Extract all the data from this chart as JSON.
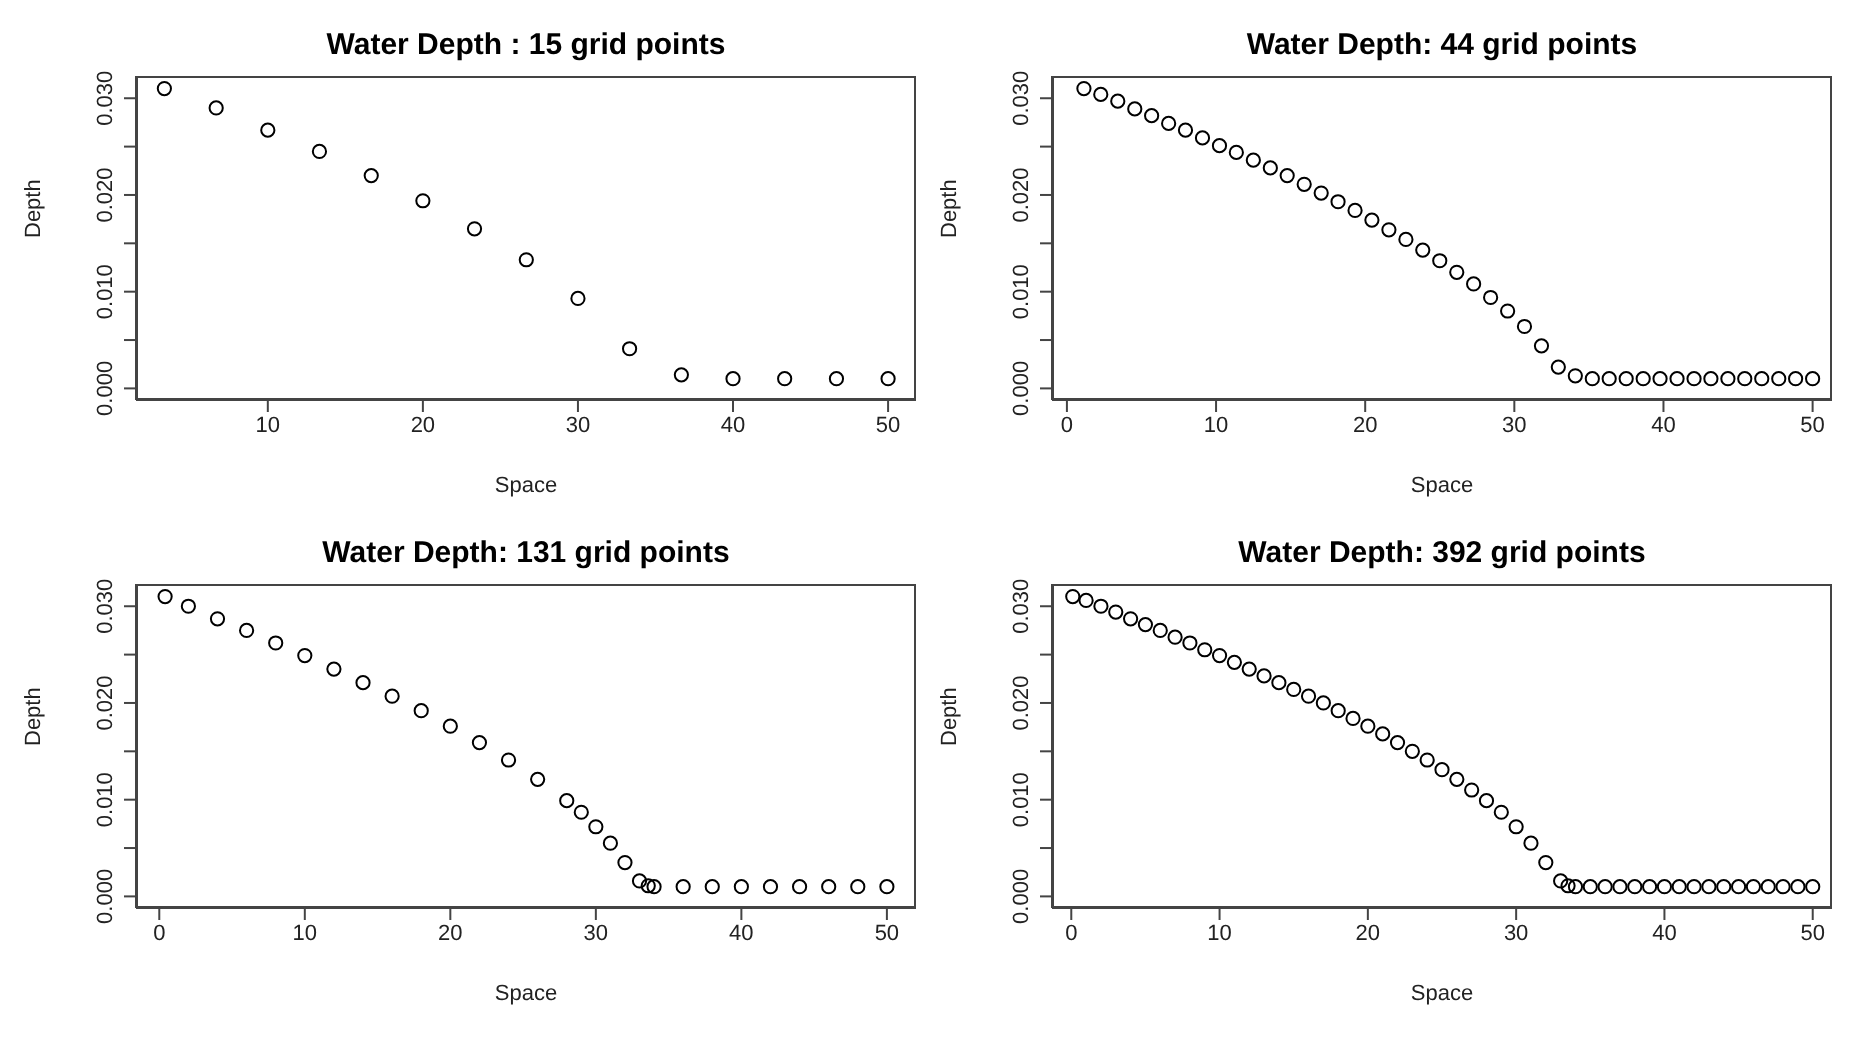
{
  "chart_data": [
    {
      "type": "scatter",
      "title": "Water Depth : 15 grid points",
      "xlabel": "Space",
      "ylabel": "Depth",
      "marker": "circle",
      "grid": false,
      "xlim": [
        1.5,
        51.8
      ],
      "xticks": [
        10,
        20,
        30,
        40,
        50
      ],
      "ylim": [
        -0.0012,
        0.0323
      ],
      "yticks": [
        {
          "value": 0,
          "label": "0.000"
        },
        {
          "value": 0.005,
          "label": null
        },
        {
          "value": 0.01,
          "label": "0.010"
        },
        {
          "value": 0.015,
          "label": null
        },
        {
          "value": 0.02,
          "label": "0.020"
        },
        {
          "value": 0.025,
          "label": null
        },
        {
          "value": 0.03,
          "label": "0.030"
        }
      ],
      "series": [
        {
          "color": "#000000",
          "x": [
            3.33,
            6.67,
            10,
            13.33,
            16.67,
            20,
            23.33,
            26.67,
            30,
            33.33,
            36.67,
            40,
            43.33,
            46.67,
            50
          ],
          "values": [
            0.031,
            0.029,
            0.0267,
            0.0245,
            0.022,
            0.0194,
            0.0165,
            0.0133,
            0.0093,
            0.0041,
            0.0014,
            0.001,
            0.001,
            0.001,
            0.001
          ]
        }
      ]
    },
    {
      "type": "scatter",
      "title": "Water Depth: 44 grid points",
      "xlabel": "Space",
      "ylabel": "Depth",
      "marker": "circle",
      "grid": false,
      "xlim": [
        -1,
        51.3
      ],
      "xticks": [
        0,
        10,
        20,
        30,
        40,
        50
      ],
      "ylim": [
        -0.0012,
        0.0323
      ],
      "yticks": [
        {
          "value": 0,
          "label": "0.000"
        },
        {
          "value": 0.005,
          "label": null
        },
        {
          "value": 0.01,
          "label": "0.010"
        },
        {
          "value": 0.015,
          "label": null
        },
        {
          "value": 0.02,
          "label": "0.020"
        },
        {
          "value": 0.025,
          "label": null
        },
        {
          "value": 0.03,
          "label": "0.030"
        }
      ],
      "series": [
        {
          "color": "#000000",
          "x": [
            1.14,
            2.27,
            3.41,
            4.55,
            5.68,
            6.82,
            7.95,
            9.09,
            10.23,
            11.36,
            12.5,
            13.64,
            14.77,
            15.91,
            17.05,
            18.18,
            19.32,
            20.45,
            21.59,
            22.73,
            23.86,
            25,
            26.14,
            27.27,
            28.41,
            29.55,
            30.68,
            31.82,
            32.95,
            34.09,
            35.23,
            36.36,
            37.5,
            38.64,
            39.77,
            40.91,
            42.05,
            43.18,
            44.32,
            45.45,
            46.59,
            47.73,
            48.86,
            50
          ],
          "values": [
            0.031,
            0.0304,
            0.0297,
            0.0289,
            0.0282,
            0.0274,
            0.0267,
            0.0259,
            0.0251,
            0.0244,
            0.0236,
            0.0228,
            0.022,
            0.0211,
            0.0202,
            0.0193,
            0.0184,
            0.0174,
            0.0164,
            0.0154,
            0.0143,
            0.0132,
            0.012,
            0.0108,
            0.0094,
            0.008,
            0.0064,
            0.0044,
            0.0022,
            0.0013,
            0.001,
            0.001,
            0.001,
            0.001,
            0.001,
            0.001,
            0.001,
            0.001,
            0.001,
            0.001,
            0.001,
            0.001,
            0.001,
            0.001
          ]
        }
      ]
    },
    {
      "type": "scatter",
      "title": "Water Depth: 131 grid points",
      "xlabel": "Space",
      "ylabel": "Depth",
      "marker": "circle",
      "grid": false,
      "xlim": [
        -1.6,
        52
      ],
      "xticks": [
        0,
        10,
        20,
        30,
        40,
        50
      ],
      "ylim": [
        -0.0012,
        0.0323
      ],
      "yticks": [
        {
          "value": 0,
          "label": "0.000"
        },
        {
          "value": 0.005,
          "label": null
        },
        {
          "value": 0.01,
          "label": "0.010"
        },
        {
          "value": 0.015,
          "label": null
        },
        {
          "value": 0.02,
          "label": "0.020"
        },
        {
          "value": 0.025,
          "label": null
        },
        {
          "value": 0.03,
          "label": "0.030"
        }
      ],
      "series": [
        {
          "color": "#000000",
          "x": [
            0.4,
            2,
            4,
            6,
            8,
            10,
            12,
            14,
            16,
            18,
            20,
            22,
            24,
            26,
            28,
            29,
            30,
            31,
            32,
            33,
            33.6,
            34,
            36,
            38,
            40,
            42,
            44,
            46,
            48,
            50
          ],
          "values": [
            0.031,
            0.03,
            0.0287,
            0.0275,
            0.0262,
            0.0249,
            0.0235,
            0.0221,
            0.0207,
            0.0192,
            0.0176,
            0.0159,
            0.0141,
            0.0121,
            0.0099,
            0.0087,
            0.0072,
            0.0055,
            0.0035,
            0.0016,
            0.0011,
            0.001,
            0.001,
            0.001,
            0.001,
            0.001,
            0.001,
            0.001,
            0.001,
            0.001
          ]
        }
      ]
    },
    {
      "type": "scatter",
      "title": "Water Depth: 392 grid points",
      "xlabel": "Space",
      "ylabel": "Depth",
      "marker": "circle",
      "grid": false,
      "xlim": [
        -1.3,
        51.3
      ],
      "xticks": [
        0,
        10,
        20,
        30,
        40,
        50
      ],
      "ylim": [
        -0.0012,
        0.0323
      ],
      "yticks": [
        {
          "value": 0,
          "label": "0.000"
        },
        {
          "value": 0.005,
          "label": null
        },
        {
          "value": 0.01,
          "label": "0.010"
        },
        {
          "value": 0.015,
          "label": null
        },
        {
          "value": 0.02,
          "label": "0.020"
        },
        {
          "value": 0.025,
          "label": null
        },
        {
          "value": 0.03,
          "label": "0.030"
        }
      ],
      "series": [
        {
          "color": "#000000",
          "x": [
            0.1,
            1,
            2,
            3,
            4,
            5,
            6,
            7,
            8,
            9,
            10,
            11,
            12,
            13,
            14,
            15,
            16,
            17,
            18,
            19,
            20,
            21,
            22,
            23,
            24,
            25,
            26,
            27,
            28,
            29,
            30,
            31,
            32,
            33,
            33.5,
            34,
            35,
            36,
            37,
            38,
            39,
            40,
            41,
            42,
            43,
            44,
            45,
            46,
            47,
            48,
            49,
            50
          ],
          "values": [
            0.031,
            0.0306,
            0.03,
            0.0294,
            0.0287,
            0.0281,
            0.0275,
            0.0268,
            0.0262,
            0.0255,
            0.0249,
            0.0242,
            0.0235,
            0.0228,
            0.0221,
            0.0214,
            0.0207,
            0.02,
            0.0192,
            0.0184,
            0.0176,
            0.0168,
            0.0159,
            0.015,
            0.0141,
            0.0131,
            0.0121,
            0.011,
            0.0099,
            0.0087,
            0.0072,
            0.0055,
            0.0035,
            0.0016,
            0.0011,
            0.001,
            0.001,
            0.001,
            0.001,
            0.001,
            0.001,
            0.001,
            0.001,
            0.001,
            0.001,
            0.001,
            0.001,
            0.001,
            0.001,
            0.001,
            0.001,
            0.001
          ]
        }
      ]
    }
  ]
}
